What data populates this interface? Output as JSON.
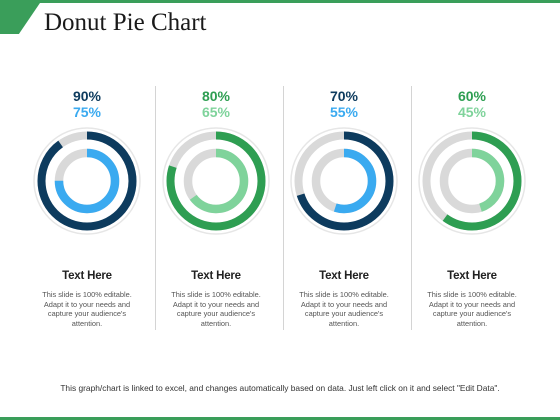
{
  "title": "Donut Pie Chart",
  "footer": "This graph/chart is linked to excel, and changes automatically based on data. Just left click on it and select \"Edit Data\".",
  "colors": {
    "accent": "#3a9e5a",
    "track": "#d9d9d9",
    "ring_border": "#e6e6e6"
  },
  "chart_data": {
    "type": "donut",
    "title": "",
    "charts": [
      {
        "outer": 90,
        "inner": 75,
        "outer_label": "90%",
        "inner_label": "75%",
        "outer_color": "#0d3b5e",
        "inner_color": "#3aaaf0",
        "heading": "Text Here",
        "text": "This slide is 100% editable. Adapt it to your needs and capture your audience's attention."
      },
      {
        "outer": 80,
        "inner": 65,
        "outer_label": "80%",
        "inner_label": "65%",
        "outer_color": "#2e9e52",
        "inner_color": "#7fd39b",
        "heading": "Text Here",
        "text": "This slide is 100% editable. Adapt it to your needs and capture your audience's attention."
      },
      {
        "outer": 70,
        "inner": 55,
        "outer_label": "70%",
        "inner_label": "55%",
        "outer_color": "#0d3b5e",
        "inner_color": "#3aaaf0",
        "heading": "Text Here",
        "text": "This slide is 100% editable. Adapt it to your needs and capture your audience's attention."
      },
      {
        "outer": 60,
        "inner": 45,
        "outer_label": "60%",
        "inner_label": "45%",
        "outer_color": "#2e9e52",
        "inner_color": "#7fd39b",
        "heading": "Text Here",
        "text": "This slide is 100% editable. Adapt it to your needs and capture your audience's attention."
      }
    ]
  }
}
